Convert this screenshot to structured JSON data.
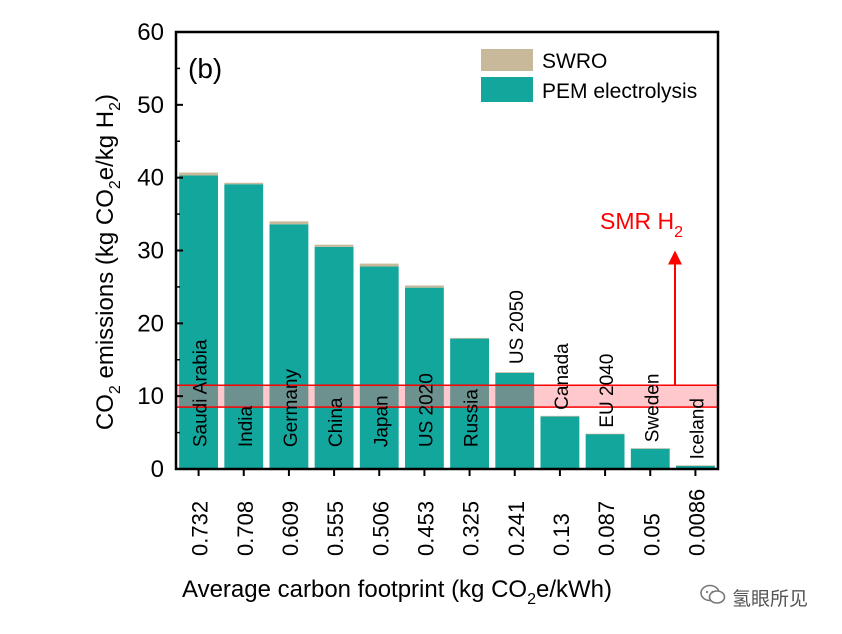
{
  "chart_data": {
    "type": "bar",
    "panel_label": "(b)",
    "categories": [
      "Saudi Arabia",
      "India",
      "Germany",
      "China",
      "Japan",
      "US 2020",
      "Russia",
      "US 2050",
      "Canada",
      "EU 2040",
      "Sweden",
      "Iceland"
    ],
    "x_tick_labels": [
      "0.732",
      "0.708",
      "0.609",
      "0.555",
      "0.506",
      "0.453",
      "0.325",
      "0.241",
      "0.13",
      "0.087",
      "0.05",
      "0.0086"
    ],
    "series": [
      {
        "name": "PEM electrolysis",
        "color": "#12a69c",
        "values": [
          40.3,
          39.1,
          33.6,
          30.5,
          27.8,
          24.9,
          17.9,
          13.2,
          7.2,
          4.8,
          2.8,
          0.45
        ]
      },
      {
        "name": "SWRO",
        "color": "#c8b99a",
        "values": [
          0.4,
          0.2,
          0.4,
          0.3,
          0.4,
          0.3,
          0.1,
          0.1,
          0.1,
          0.05,
          0.05,
          0.05
        ]
      }
    ],
    "stacked": true,
    "ylim": [
      0,
      60
    ],
    "y_ticks": [
      0,
      10,
      20,
      30,
      40,
      50,
      60
    ],
    "ylabel": {
      "pre": "CO",
      "sub1": "2",
      "mid": " emissions (kg CO",
      "sub2": "2",
      "mid2": "e/kg H",
      "sub3": "2",
      "post": ")"
    },
    "xlabel": {
      "pre": "Average carbon footprint  (kg CO",
      "sub": "2",
      "post": "e/kWh)"
    },
    "legend_position": "top-right",
    "smr_band": {
      "range": [
        8.5,
        11.5
      ],
      "label": "SMR H",
      "label_sub": "2",
      "color": "#ff0000",
      "arrow_from": 11.5,
      "arrow_to": 30
    }
  },
  "watermark": {
    "text": "氢眼所见",
    "icon": "wechat-icon"
  }
}
